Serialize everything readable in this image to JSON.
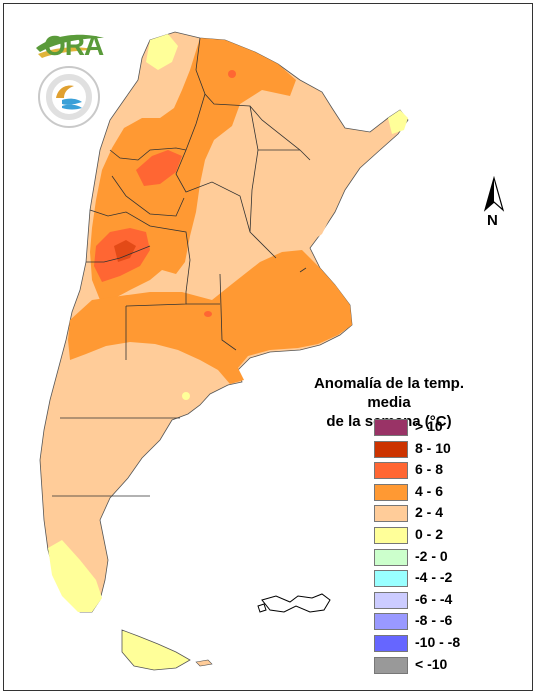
{
  "legend": {
    "title_line1": "Anomalía de la temp. media",
    "title_line2": "de la semana (°C)",
    "items": [
      {
        "label": "> 10",
        "color": "#993366"
      },
      {
        "label": "8 - 10",
        "color": "#cc3300"
      },
      {
        "label": "6 - 8",
        "color": "#ff6633"
      },
      {
        "label": "4 - 6",
        "color": "#ff9933"
      },
      {
        "label": "2 - 4",
        "color": "#ffcc99"
      },
      {
        "label": "0 - 2",
        "color": "#ffff99"
      },
      {
        "label": "-2 - 0",
        "color": "#ccffcc"
      },
      {
        "label": "-4 - -2",
        "color": "#99ffff"
      },
      {
        "label": "-6 - -4",
        "color": "#ccccff"
      },
      {
        "label": "-8 - -6",
        "color": "#9999ff"
      },
      {
        "label": "-10 - -8",
        "color": "#6666ff"
      },
      {
        "label": "< -10",
        "color": "#999999"
      }
    ]
  },
  "north_arrow": {
    "letter": "N"
  },
  "logos": {
    "ora": "ORA",
    "smn_seal": "SERVICIO METEOROLÓGICO NACIONAL ARGENTINA"
  }
}
